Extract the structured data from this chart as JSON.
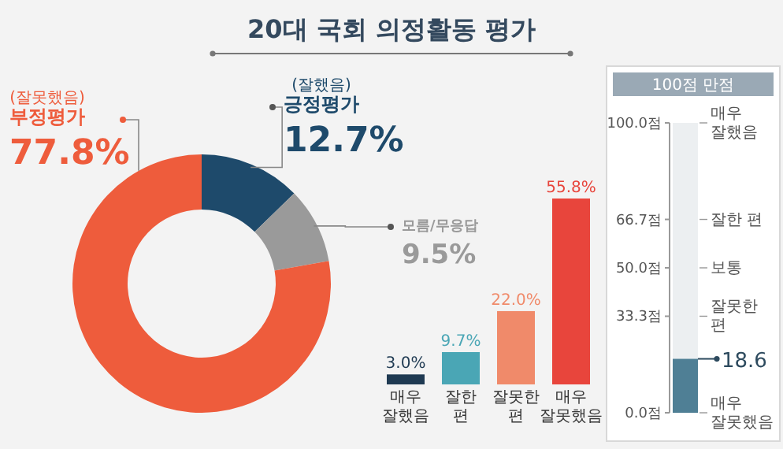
{
  "chart_data": [
    {
      "type": "donut",
      "title": "20대 국회 의정활동 평가",
      "categories": [
        "긍정평가",
        "모름/무응답",
        "부정평가"
      ],
      "values": [
        12.7,
        9.5,
        77.8
      ],
      "colors": [
        "#1e4a6b",
        "#9a9a9a",
        "#ee5c3c"
      ],
      "value_labels": [
        "12.7%",
        "9.5%",
        "77.8%"
      ],
      "annotations": [
        {
          "text": "(잘했음)",
          "x": "긍정평가"
        },
        {
          "text": "(잘못했음)",
          "x": "부정평가"
        }
      ]
    },
    {
      "type": "bar",
      "categories": [
        "매우 잘했음",
        "잘한 편",
        "잘못한 편",
        "매우 잘못했음"
      ],
      "values": [
        3.0,
        9.7,
        22.0,
        55.8
      ],
      "colors": [
        "#1f3a52",
        "#4aa6b5",
        "#f08a6a",
        "#e8453c"
      ],
      "value_labels": [
        "3.0%",
        "9.7%",
        "22.0%",
        "55.8%"
      ]
    },
    {
      "type": "bar",
      "title": "100점 만점",
      "categories": [
        null
      ],
      "values": [
        18.6
      ],
      "colors": [
        "#4f7f95"
      ],
      "value_labels": [
        "18.6"
      ],
      "ylim": [
        0,
        100
      ],
      "yticks": [
        {
          "value": 0,
          "label": "0.0점"
        },
        {
          "value": 33.3,
          "label": "33.3점"
        },
        {
          "value": 50,
          "label": "50.0점"
        },
        {
          "value": 66.7,
          "label": "66.7점"
        },
        {
          "value": 100,
          "label": "100.0점"
        }
      ],
      "ref_lines": [
        {
          "axis": "y",
          "value": 0,
          "label": "매우 잘못했음",
          "color": "#999999"
        },
        {
          "axis": "y",
          "value": 33.3,
          "label": "잘못한 편",
          "color": "#999999"
        },
        {
          "axis": "y",
          "value": 50,
          "label": "보통",
          "color": "#999999"
        },
        {
          "axis": "y",
          "value": 66.7,
          "label": "잘한 편",
          "color": "#999999"
        },
        {
          "axis": "y",
          "value": 100,
          "label": "매우 잘했음",
          "color": "#999999"
        }
      ]
    }
  ]
}
